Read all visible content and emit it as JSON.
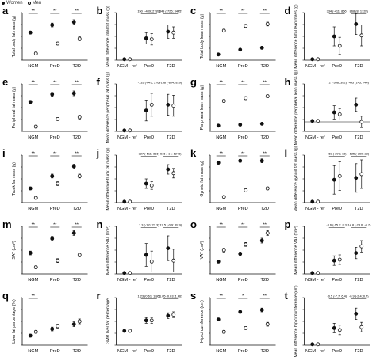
{
  "legend": [
    {
      "label": "Women",
      "marker": "filled"
    },
    {
      "label": "Men",
      "marker": "open"
    }
  ],
  "chart_data": [
    {
      "panel": "a",
      "type": "scatter",
      "ylabel": "Total body fat mass (g)",
      "categories": [
        "NGM",
        "PreD",
        "T2D"
      ],
      "sig": [
        "**",
        "**",
        "**"
      ],
      "series": [
        {
          "name": "Women",
          "values": [
            0.58,
            0.74,
            0.8
          ],
          "err": [
            0.03,
            0.04,
            0.05
          ]
        },
        {
          "name": "Men",
          "values": [
            0.14,
            0.35,
            0.45
          ],
          "err": [
            0.03,
            0.03,
            0.04
          ]
        }
      ],
      "ylim": [
        0,
        1
      ]
    },
    {
      "panel": "b",
      "type": "scatter",
      "ylabel": "Mean difference total fat mass (g)",
      "categories": [
        "NGM - ref",
        "PreD",
        "T2D"
      ],
      "annotations": [
        "150 (-489; 2789)",
        "349 (-725; 3445)"
      ],
      "series": [
        {
          "name": "Women",
          "values": [
            0.02,
            0.46,
            0.6
          ],
          "err": [
            0,
            0.12,
            0.14
          ]
        },
        {
          "name": "Men",
          "values": [
            0.02,
            0.44,
            0.58
          ],
          "err": [
            0,
            0.12,
            0.12
          ]
        }
      ],
      "ylim": [
        0,
        1
      ]
    },
    {
      "panel": "c",
      "type": "scatter",
      "ylabel": "Total body lean mass (g)",
      "categories": [
        "NGM",
        "PreD",
        "T2D"
      ],
      "sig": [
        "**",
        "**",
        "**"
      ],
      "series": [
        {
          "name": "Women",
          "values": [
            0.12,
            0.22,
            0.26
          ],
          "err": [
            0.02,
            0.02,
            0.03
          ]
        },
        {
          "name": "Men",
          "values": [
            0.62,
            0.72,
            0.76
          ],
          "err": [
            0.03,
            0.03,
            0.04
          ]
        }
      ],
      "ylim": [
        0,
        1
      ]
    },
    {
      "panel": "d",
      "type": "scatter",
      "ylabel": "Mean difference total lean mass (g)",
      "categories": [
        "NGM - ref",
        "PreD",
        "T2D"
      ],
      "annotations": [
        "334 (-411; 866)",
        "868 (8; 1728)"
      ],
      "series": [
        {
          "name": "Women",
          "values": [
            0.02,
            0.5,
            0.76
          ],
          "err": [
            0,
            0.2,
            0.22
          ]
        },
        {
          "name": "Men",
          "values": [
            0.02,
            0.3,
            0.52
          ],
          "err": [
            0,
            0.18,
            0.22
          ]
        }
      ],
      "ylim": [
        0,
        1
      ]
    },
    {
      "panel": "e",
      "type": "scatter",
      "ylabel": "Peripheral fat mass (g)",
      "categories": [
        "NGM",
        "PreD",
        "T2D"
      ],
      "sig": [
        "**",
        "**",
        "**"
      ],
      "series": [
        {
          "name": "Women",
          "values": [
            0.62,
            0.78,
            0.8
          ],
          "err": [
            0.03,
            0.04,
            0.05
          ]
        },
        {
          "name": "Men",
          "values": [
            0.1,
            0.26,
            0.3
          ],
          "err": [
            0.03,
            0.03,
            0.04
          ]
        }
      ],
      "ylim": [
        0,
        1
      ]
    },
    {
      "panel": "f",
      "type": "scatter",
      "ylabel": "Mean difference peripheral fat mass (g)",
      "categories": [
        "NGM - ref",
        "PreD",
        "T2D"
      ],
      "annotations": [
        "-133 (-643; 376)",
        "-158 (-804; 829)"
      ],
      "series": [
        {
          "name": "Women",
          "values": [
            0.02,
            0.44,
            0.56
          ],
          "err": [
            0,
            0.22,
            0.22
          ]
        },
        {
          "name": "Men",
          "values": [
            0.02,
            0.56,
            0.54
          ],
          "err": [
            0,
            0.24,
            0.22
          ]
        }
      ],
      "ylim": [
        0,
        1
      ]
    },
    {
      "panel": "g",
      "type": "scatter",
      "ylabel": "Peripheral lean mass (g)",
      "categories": [
        "NGM",
        "PreD",
        "T2D"
      ],
      "sig": [
        "**",
        "**",
        "**"
      ],
      "series": [
        {
          "name": "Women",
          "values": [
            0.12,
            0.14,
            0.16
          ],
          "err": [
            0.02,
            0.02,
            0.02
          ]
        },
        {
          "name": "Men",
          "values": [
            0.64,
            0.7,
            0.74
          ],
          "err": [
            0.03,
            0.03,
            0.03
          ]
        }
      ],
      "ylim": [
        0,
        1
      ]
    },
    {
      "panel": "h",
      "type": "scatter",
      "ylabel": "Mean difference peripheral lean mass (g)",
      "categories": [
        "NGM - ref",
        "PreD",
        "T2D"
      ],
      "annotations": [
        "72 (-348; 382)",
        "443 (143; 744)"
      ],
      "series": [
        {
          "name": "Women",
          "values": [
            0.02,
            0.2,
            0.36
          ],
          "err": [
            0,
            0.14,
            0.14
          ]
        },
        {
          "name": "Men",
          "values": [
            0.02,
            0.16,
            0.0
          ],
          "err": [
            0,
            0.12,
            0.12
          ]
        }
      ],
      "ylim": [
        -0.2,
        0.8
      ]
    },
    {
      "panel": "i",
      "type": "scatter",
      "ylabel": "Trunk fat mass (g)",
      "categories": [
        "NGM",
        "PreD",
        "T2D"
      ],
      "sig": [
        "**",
        "**",
        "**"
      ],
      "series": [
        {
          "name": "Women",
          "values": [
            0.3,
            0.56,
            0.76
          ],
          "err": [
            0.03,
            0.04,
            0.05
          ]
        },
        {
          "name": "Men",
          "values": [
            0.1,
            0.4,
            0.56
          ],
          "err": [
            0.03,
            0.04,
            0.04
          ]
        }
      ],
      "ylim": [
        0,
        1
      ]
    },
    {
      "panel": "j",
      "type": "scatter",
      "ylabel": "Mean difference trunk fat mass (g)",
      "categories": [
        "NGM - ref",
        "PreD",
        "T2D"
      ],
      "annotations": [
        "327 (-511; 816)",
        "616 (-14; 1246)"
      ],
      "series": [
        {
          "name": "Women",
          "values": [
            0.02,
            0.4,
            0.7
          ],
          "err": [
            0,
            0.1,
            0.1
          ]
        },
        {
          "name": "Men",
          "values": [
            0.02,
            0.36,
            0.62
          ],
          "err": [
            0,
            0.08,
            0.1
          ]
        }
      ],
      "ylim": [
        0,
        1
      ]
    },
    {
      "panel": "k",
      "type": "scatter",
      "ylabel": "Gynoid fat mass (g)",
      "categories": [
        "NGM",
        "PreD",
        "T2D"
      ],
      "sig": [
        "**",
        "**",
        "**"
      ],
      "series": [
        {
          "name": "Women",
          "values": [
            0.84,
            0.88,
            0.88
          ],
          "err": [
            0.03,
            0.03,
            0.04
          ]
        },
        {
          "name": "Men",
          "values": [
            0.12,
            0.26,
            0.3
          ],
          "err": [
            0.02,
            0.03,
            0.03
          ]
        }
      ],
      "ylim": [
        0,
        1
      ]
    },
    {
      "panel": "l",
      "type": "scatter",
      "ylabel": "Mean difference gynoid fat mass (g)",
      "categories": [
        "NGM - ref",
        "PreD",
        "T2D"
      ],
      "annotations": [
        "-68 (-209; 73)",
        "-125 (-269; 23)"
      ],
      "series": [
        {
          "name": "Women",
          "values": [
            0.02,
            0.48,
            0.52
          ],
          "err": [
            0,
            0.3,
            0.3
          ]
        },
        {
          "name": "Men",
          "values": [
            0.02,
            0.56,
            0.6
          ],
          "err": [
            0,
            0.3,
            0.3
          ]
        }
      ],
      "ylim": [
        0,
        1
      ]
    },
    {
      "panel": "m",
      "type": "scatter",
      "ylabel": "SAT (cm²)",
      "categories": [
        "NGM",
        "PreD",
        "T2D"
      ],
      "sig": [
        "**",
        "**",
        "**"
      ],
      "series": [
        {
          "name": "Women",
          "values": [
            0.44,
            0.74,
            0.86
          ],
          "err": [
            0.04,
            0.05,
            0.05
          ]
        },
        {
          "name": "Men",
          "values": [
            0.14,
            0.28,
            0.4
          ],
          "err": [
            0.03,
            0.04,
            0.04
          ]
        }
      ],
      "ylim": [
        0,
        1
      ]
    },
    {
      "panel": "n",
      "type": "scatter",
      "ylabel": "Mean difference SAT (cm²)",
      "categories": [
        "NGM - ref",
        "PreD",
        "T2D"
      ],
      "annotations": [
        "1.3 (-1.0; 23.3)",
        "19.5 (-0.9; 39.9)"
      ],
      "series": [
        {
          "name": "Women",
          "values": [
            0.02,
            0.4,
            0.54
          ],
          "err": [
            0,
            0.24,
            0.26
          ]
        },
        {
          "name": "Men",
          "values": [
            0.02,
            0.26,
            0.28
          ],
          "err": [
            0,
            0.22,
            0.24
          ]
        }
      ],
      "ylim": [
        0,
        1
      ]
    },
    {
      "panel": "o",
      "type": "scatter",
      "ylabel": "VAT (cm²)",
      "categories": [
        "NGM",
        "PreD",
        "T2D"
      ],
      "sig": [
        "**",
        "**",
        "**"
      ],
      "series": [
        {
          "name": "Women",
          "values": [
            0.26,
            0.42,
            0.7
          ],
          "err": [
            0.03,
            0.04,
            0.05
          ]
        },
        {
          "name": "Men",
          "values": [
            0.5,
            0.62,
            0.86
          ],
          "err": [
            0.04,
            0.04,
            0.05
          ]
        }
      ],
      "ylim": [
        0,
        1
      ]
    },
    {
      "panel": "p",
      "type": "scatter",
      "ylabel": "Mean difference VAT (cm²)",
      "categories": [
        "NGM - ref",
        "PreD",
        "T2D"
      ],
      "annotations": [
        "-3.6 (-15.9; 8.3)",
        "-14.8 (-28.6; -0.7)"
      ],
      "series": [
        {
          "name": "Women",
          "values": [
            0.02,
            0.28,
            0.44
          ],
          "err": [
            0,
            0.1,
            0.12
          ]
        },
        {
          "name": "Men",
          "values": [
            0.02,
            0.3,
            0.58
          ],
          "err": [
            0,
            0.1,
            0.12
          ]
        }
      ],
      "ylim": [
        0,
        1
      ]
    },
    {
      "panel": "q",
      "type": "scatter",
      "ylabel": "Liver fat percentage (%)",
      "categories": [
        "NGM",
        "PreD",
        "T2D"
      ],
      "sig": [
        "**",
        "",
        ""
      ],
      "series": [
        {
          "name": "Women",
          "values": [
            0.2,
            0.34,
            0.44
          ],
          "err": [
            0.03,
            0.04,
            0.05
          ]
        },
        {
          "name": "Men",
          "values": [
            0.28,
            0.4,
            0.5
          ],
          "err": [
            0.03,
            0.04,
            0.05
          ]
        }
      ],
      "ylim": [
        0,
        1
      ]
    },
    {
      "panel": "r",
      "type": "scatter",
      "ylabel": "GMR liver fat percentage",
      "categories": [
        "NGM - ref",
        "PreD",
        "T2D"
      ],
      "annotations": [
        "1.23 (0.61; 1.86)",
        "1.05 (0.63; 1.46)"
      ],
      "series": [
        {
          "name": "Women",
          "values": [
            0.3,
            0.52,
            0.62
          ],
          "err": [
            0,
            0.06,
            0.06
          ]
        },
        {
          "name": "Men",
          "values": [
            0.3,
            0.52,
            0.64
          ],
          "err": [
            0,
            0.06,
            0.06
          ]
        }
      ],
      "ylim": [
        0,
        1
      ]
    },
    {
      "panel": "s",
      "type": "scatter",
      "ylabel": "Hip circumference (cm)",
      "categories": [
        "NGM",
        "PreD",
        "T2D"
      ],
      "sig": [
        "**",
        "*",
        "**"
      ],
      "series": [
        {
          "name": "Women",
          "values": [
            0.54,
            0.7,
            0.74
          ],
          "err": [
            0.03,
            0.03,
            0.04
          ]
        },
        {
          "name": "Men",
          "values": [
            0.28,
            0.36,
            0.44
          ],
          "err": [
            0.03,
            0.03,
            0.04
          ]
        }
      ],
      "ylim": [
        0,
        1
      ]
    },
    {
      "panel": "t",
      "type": "scatter",
      "ylabel": "Mean difference hip circumference (cm)",
      "categories": [
        "NGM - ref",
        "PreD",
        "T2D"
      ],
      "annotations": [
        "-0.5 (-7.7; 6.4)",
        "-0.9 (-2.4; 0.7)"
      ],
      "series": [
        {
          "name": "Women",
          "values": [
            0.02,
            0.36,
            0.66
          ],
          "err": [
            0,
            0.1,
            0.12
          ]
        },
        {
          "name": "Men",
          "values": [
            0.02,
            0.32,
            0.38
          ],
          "err": [
            0,
            0.1,
            0.1
          ]
        }
      ],
      "ylim": [
        0,
        1
      ]
    }
  ]
}
